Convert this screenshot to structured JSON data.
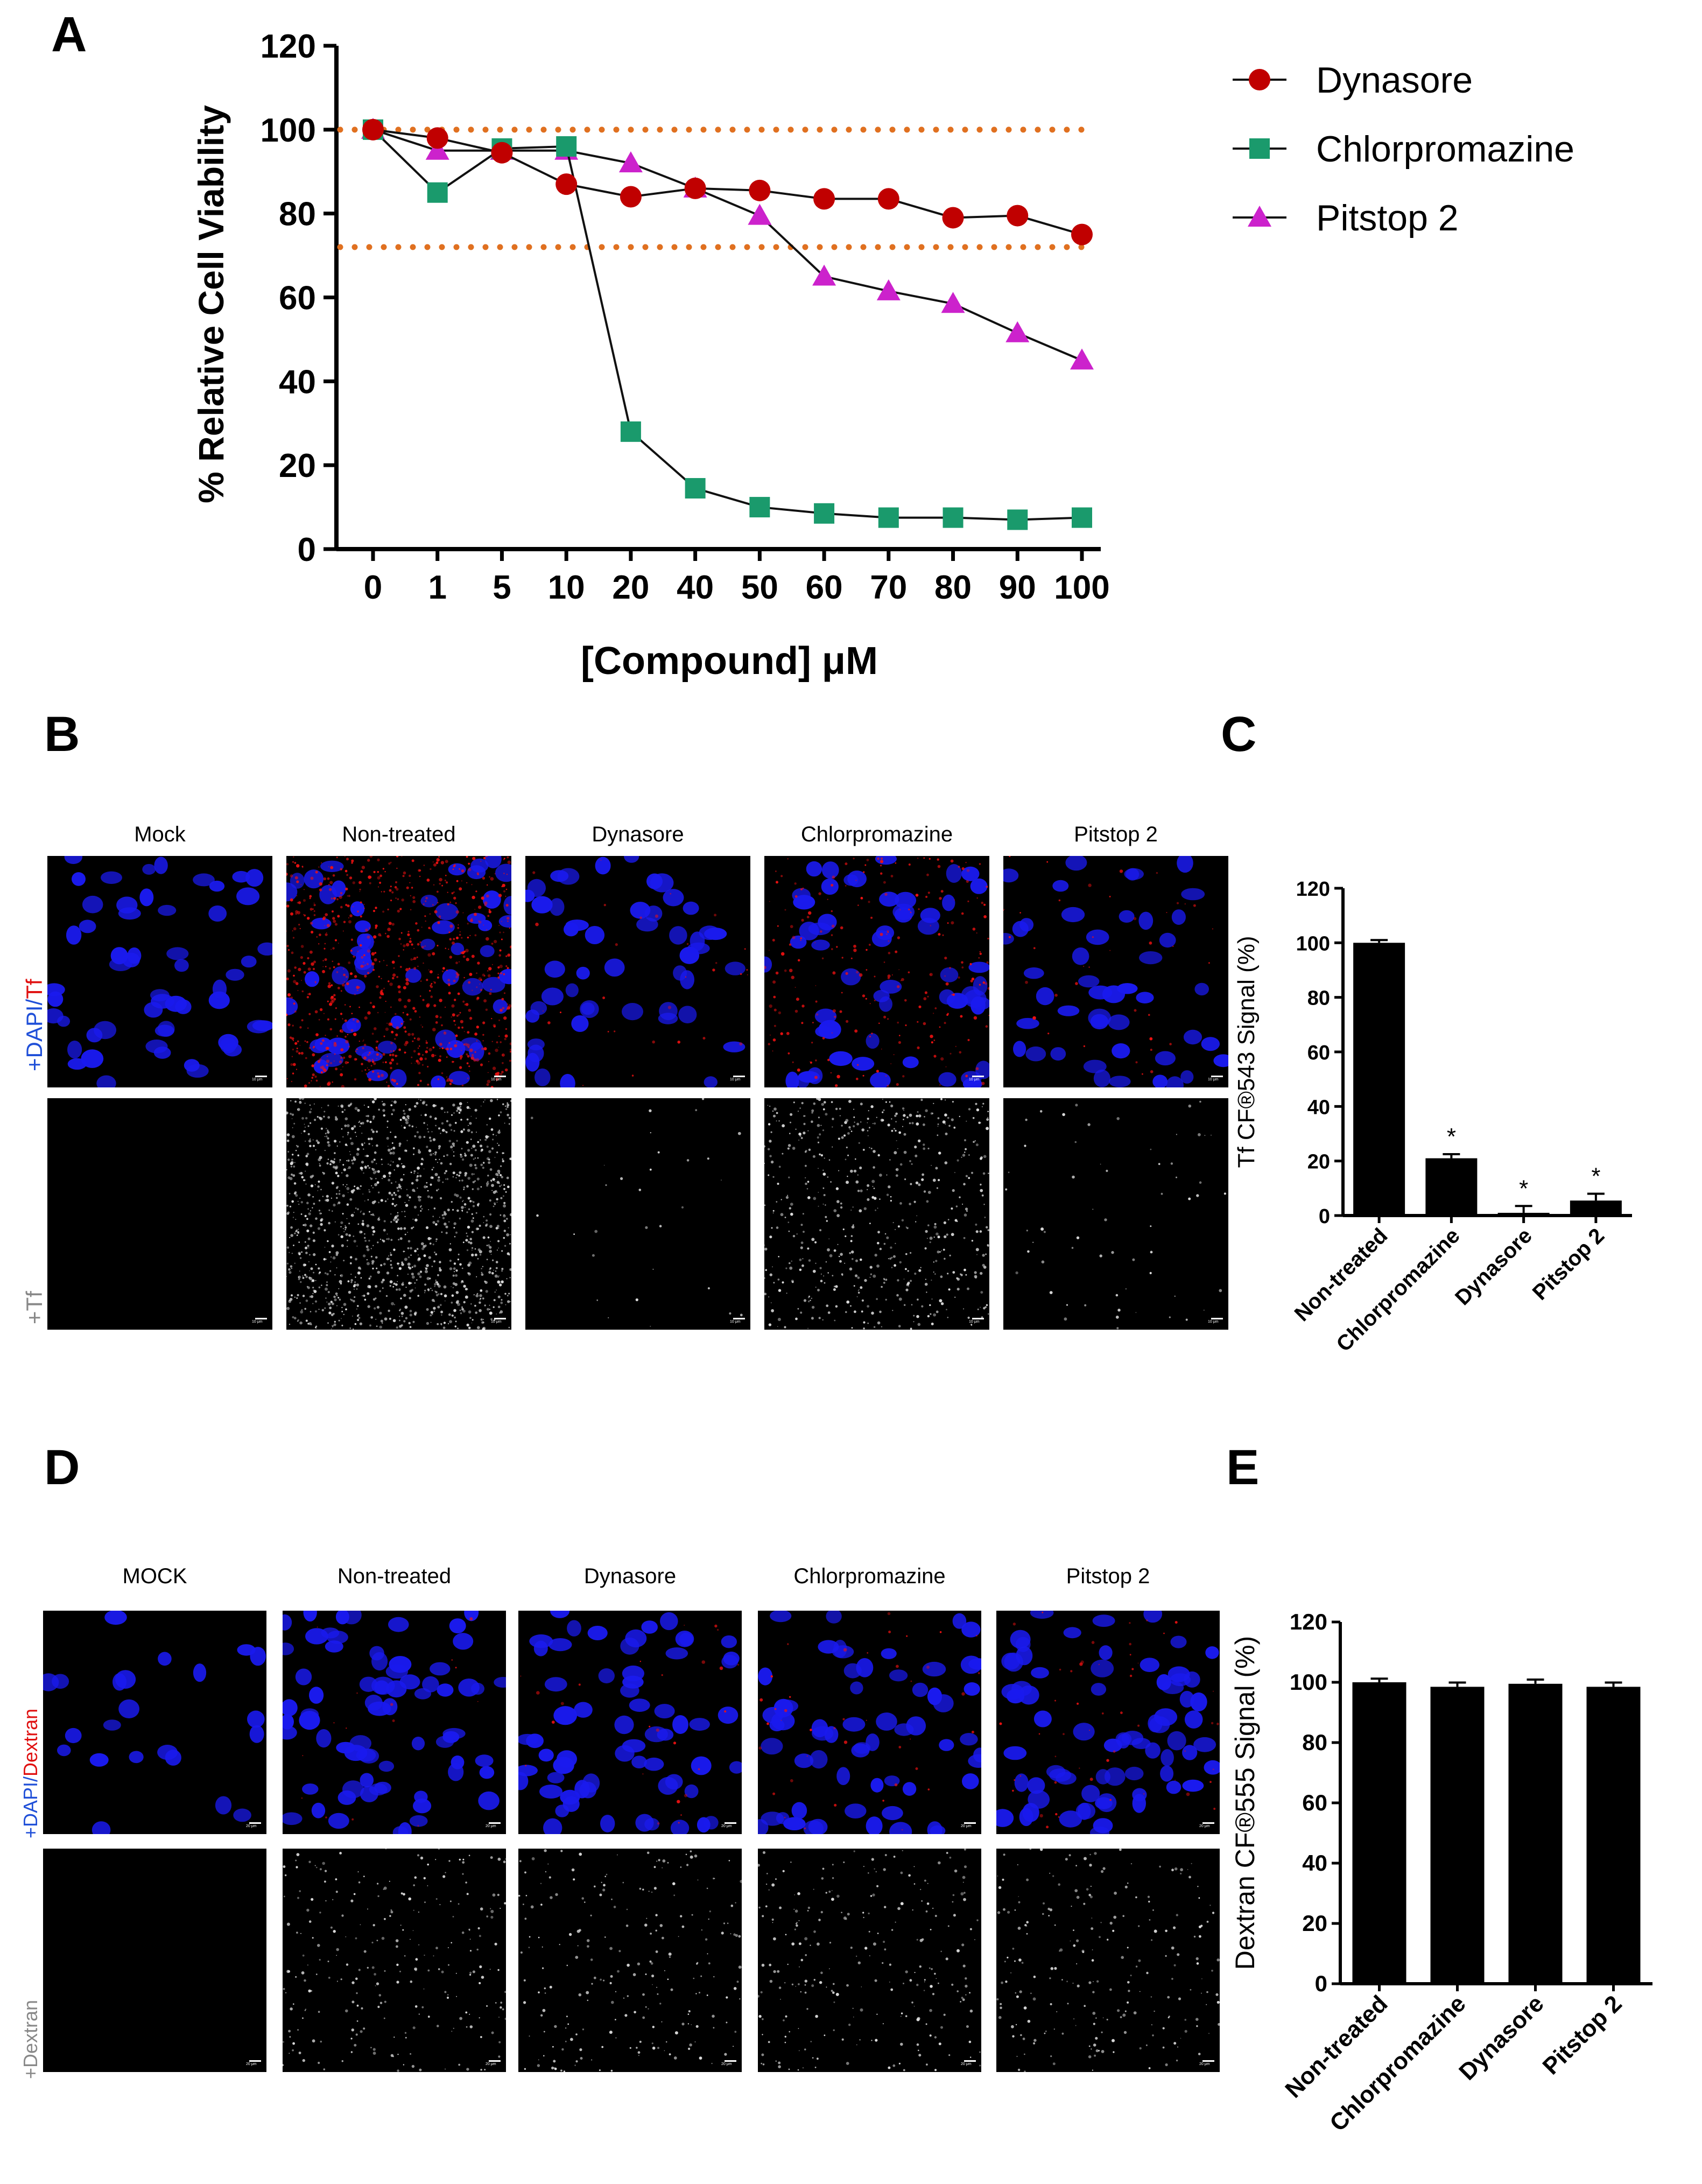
{
  "panel_letters": {
    "a": "A",
    "b": "B",
    "c": "C",
    "d": "D",
    "e": "E"
  },
  "panelA": {
    "ylabel": "% Relative Cell Viability",
    "xlabel": "[Compound] μM",
    "yticks": [
      "0",
      "20",
      "40",
      "60",
      "80",
      "100",
      "120"
    ],
    "legend": [
      "Dynasore",
      "Chlorpromazine",
      "Pitstop 2"
    ]
  },
  "panelB": {
    "columns": [
      "Mock",
      "Non-treated",
      "Dynasore",
      "Chlorpromazine",
      "Pitstop 2"
    ],
    "row1_label_a": "+DAPI/",
    "row1_label_b": "Tf",
    "row2_label": "+Tf",
    "scale_text": "10 μm"
  },
  "panelD": {
    "columns": [
      "MOCK",
      "Non-treated",
      "Dynasore",
      "Chlorpromazine",
      "Pitstop 2"
    ],
    "row1_label_a": "+DAPI/",
    "row1_label_b": "Dextran",
    "row2_label": "+Dextran",
    "scale_text": "20 μm"
  },
  "colors": {
    "dynasore": "#c00000",
    "chlorpromazine": "#1a9a6c",
    "pitstop": "#cc22cc",
    "threshold": "#e07020",
    "dapi": "#1a1aee",
    "signal_red": "#ee1111",
    "label_blue": "#1f4fd8",
    "label_red": "#e01010",
    "label_grey": "#888888"
  },
  "chart_data": [
    {
      "id": "A",
      "type": "line",
      "x": [
        "0",
        "1",
        "5",
        "10",
        "20",
        "40",
        "50",
        "60",
        "70",
        "80",
        "90",
        "100"
      ],
      "xlabel": "[Compound] μM",
      "ylabel": "% Relative Cell Viability",
      "ylim": [
        0,
        120
      ],
      "yticks": [
        0,
        20,
        40,
        60,
        80,
        100,
        120
      ],
      "series": [
        {
          "name": "Dynasore",
          "marker": "circle",
          "color": "#c00000",
          "values": [
            100,
            98,
            94.5,
            87,
            84,
            86,
            85.5,
            83.5,
            83.5,
            79,
            79.5,
            75
          ]
        },
        {
          "name": "Chlorpromazine",
          "marker": "square",
          "color": "#1a9a6c",
          "values": [
            100,
            85,
            95.5,
            96,
            28,
            14.5,
            10,
            8.5,
            7.5,
            7.5,
            7,
            7.5
          ]
        },
        {
          "name": "Pitstop 2",
          "marker": "triangle",
          "color": "#cc22cc",
          "values": [
            100,
            95,
            95,
            95,
            92,
            86,
            79.5,
            65,
            61.5,
            58.5,
            51.5,
            45
          ]
        }
      ],
      "reference_lines": [
        100,
        72
      ],
      "legend_position": "top-right",
      "grid": false
    },
    {
      "id": "C",
      "type": "bar",
      "categories": [
        "Non-treated",
        "Chlorpromazine",
        "Dynasore",
        "Pitstop 2"
      ],
      "values": [
        100,
        21,
        1,
        5.5
      ],
      "errors": [
        1,
        1.5,
        2.5,
        2.5
      ],
      "annotations": [
        "",
        "*",
        "*",
        "*"
      ],
      "ylabel": "Tf CF®543 Signal (%)",
      "ylim": [
        0,
        120
      ],
      "yticks": [
        0,
        20,
        40,
        60,
        80,
        100,
        120
      ],
      "grid": false
    },
    {
      "id": "E",
      "type": "bar",
      "categories": [
        "Non-treated",
        "Chlorpromazine",
        "Dynasore",
        "Pitstop 2"
      ],
      "values": [
        100,
        98.5,
        99.5,
        98.5
      ],
      "errors": [
        1.2,
        1.4,
        1.4,
        1.4
      ],
      "annotations": [
        "",
        "",
        "",
        ""
      ],
      "ylabel": "Dextran CF®555 Signal (%)",
      "ylim": [
        0,
        120
      ],
      "yticks": [
        0,
        20,
        40,
        60,
        80,
        100,
        120
      ],
      "grid": false
    }
  ]
}
